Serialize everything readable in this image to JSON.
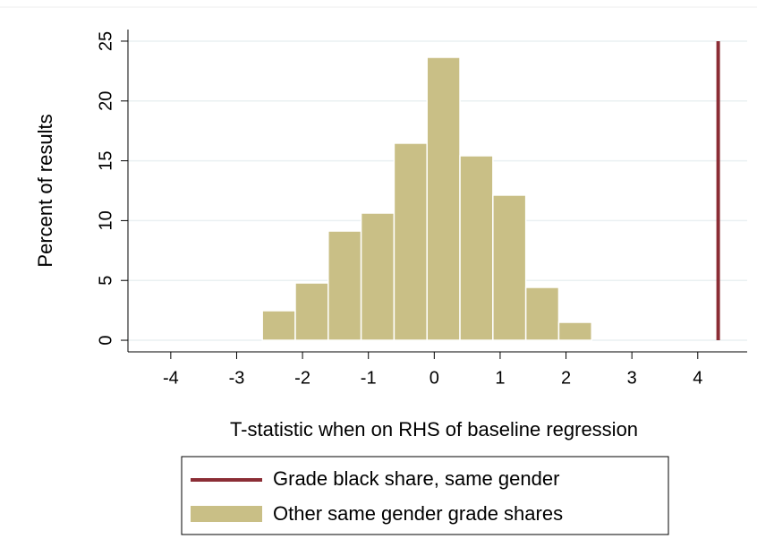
{
  "chart_data": {
    "type": "histogram",
    "xlabel": "T-statistic when on RHS of baseline regression",
    "ylabel": "Percent of results",
    "bins": [
      -2.61,
      -2.11,
      -1.61,
      -1.11,
      -0.61,
      -0.11,
      0.39,
      0.89,
      1.39,
      1.89,
      2.39
    ],
    "series": [
      {
        "name": "Grade black share, same gender",
        "color": "#8b2d35",
        "x": 4.31,
        "y": [
          0,
          25
        ]
      },
      {
        "name": "Other same gender grade shares",
        "color": "#c9bf86",
        "values": [
          2.47,
          4.79,
          9.13,
          10.63,
          16.47,
          23.65,
          15.42,
          12.13,
          4.42,
          1.5
        ]
      }
    ],
    "xlim": [
      -4.65,
      4.75
    ],
    "xticks": [
      -4,
      -3,
      -2,
      -1,
      0,
      1,
      2,
      3,
      4
    ],
    "ylim": [
      -0.97,
      25.97
    ],
    "yticks": [
      0,
      5,
      10,
      15,
      20,
      25
    ],
    "grid": true
  }
}
